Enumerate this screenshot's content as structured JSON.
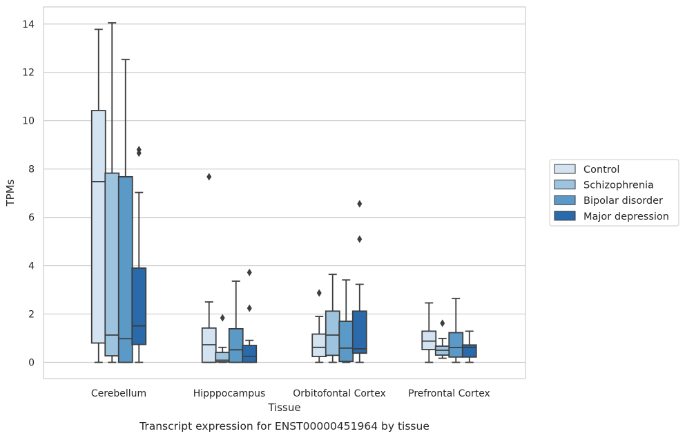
{
  "chart_data": {
    "type": "box",
    "title": "Transcript expression for ENST00000451964 by tissue",
    "xlabel": "Tissue",
    "ylabel": "TPMs",
    "ylim": [
      -0.68,
      14.68
    ],
    "yticks": [
      0,
      2,
      4,
      6,
      8,
      10,
      12,
      14
    ],
    "grid": true,
    "legend_position": "right",
    "categories": [
      "Cerebellum",
      "Hipppocampus",
      "Orbitofontal Cortex",
      "Prefrontal Cortex"
    ],
    "series": [
      {
        "name": "Control",
        "color": "#d4e3f2",
        "boxes": [
          {
            "whislo": 0.0,
            "q1": 0.8,
            "med": 7.48,
            "q3": 10.42,
            "whishi": 13.78,
            "fliers": []
          },
          {
            "whislo": 0.0,
            "q1": 0.0,
            "med": 0.73,
            "q3": 1.42,
            "whishi": 2.5,
            "fliers": [
              7.68
            ]
          },
          {
            "whislo": 0.0,
            "q1": 0.24,
            "med": 0.62,
            "q3": 1.17,
            "whishi": 1.9,
            "fliers": [
              2.87
            ]
          },
          {
            "whislo": 0.0,
            "q1": 0.53,
            "med": 0.88,
            "q3": 1.29,
            "whishi": 2.46,
            "fliers": []
          }
        ]
      },
      {
        "name": "Schizophrenia",
        "color": "#9dc3de",
        "boxes": [
          {
            "whislo": 0.0,
            "q1": 0.27,
            "med": 1.13,
            "q3": 7.83,
            "whishi": 14.05,
            "fliers": []
          },
          {
            "whislo": 0.0,
            "q1": 0.02,
            "med": 0.09,
            "q3": 0.41,
            "whishi": 0.62,
            "fliers": [
              1.84
            ]
          },
          {
            "whislo": 0.0,
            "q1": 0.29,
            "med": 1.13,
            "q3": 2.12,
            "whishi": 3.64,
            "fliers": []
          },
          {
            "whislo": 0.17,
            "q1": 0.3,
            "med": 0.5,
            "q3": 0.67,
            "whishi": 0.99,
            "fliers": [
              1.62
            ]
          }
        ]
      },
      {
        "name": "Bipolar disorder",
        "color": "#5b9ac7",
        "boxes": [
          {
            "whislo": 0.0,
            "q1": 0.0,
            "med": 0.98,
            "q3": 7.68,
            "whishi": 12.53,
            "fliers": []
          },
          {
            "whislo": 0.0,
            "q1": 0.0,
            "med": 0.52,
            "q3": 1.39,
            "whishi": 3.36,
            "fliers": []
          },
          {
            "whislo": 0.0,
            "q1": 0.04,
            "med": 0.59,
            "q3": 1.7,
            "whishi": 3.41,
            "fliers": []
          },
          {
            "whislo": 0.0,
            "q1": 0.22,
            "med": 0.61,
            "q3": 1.23,
            "whishi": 2.64,
            "fliers": []
          }
        ]
      },
      {
        "name": "Major depression",
        "color": "#2a6aab",
        "boxes": [
          {
            "whislo": 0.0,
            "q1": 0.74,
            "med": 1.51,
            "q3": 3.9,
            "whishi": 7.03,
            "fliers": [
              8.66,
              8.8
            ]
          },
          {
            "whislo": 0.0,
            "q1": 0.0,
            "med": 0.25,
            "q3": 0.7,
            "whishi": 0.91,
            "fliers": [
              2.24,
              3.72
            ]
          },
          {
            "whislo": 0.0,
            "q1": 0.38,
            "med": 0.56,
            "q3": 2.12,
            "whishi": 3.23,
            "fliers": [
              5.1,
              6.56
            ]
          },
          {
            "whislo": 0.0,
            "q1": 0.22,
            "med": 0.62,
            "q3": 0.72,
            "whishi": 1.29,
            "fliers": []
          }
        ]
      }
    ]
  }
}
